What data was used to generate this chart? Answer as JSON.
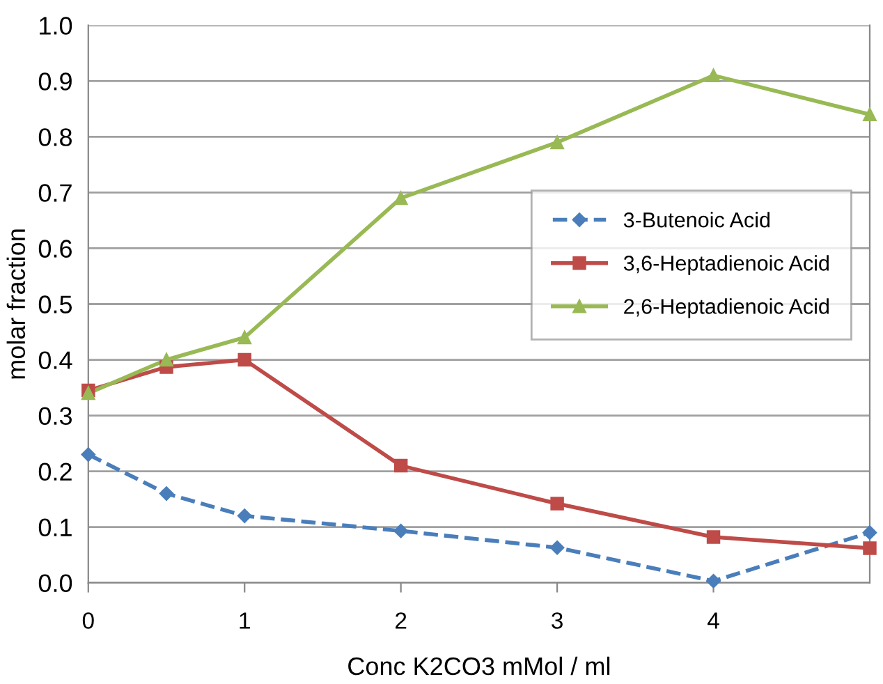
{
  "chart_data": {
    "type": "line",
    "xlabel": "Conc K2CO3 mMol / ml",
    "ylabel": "molar fraction",
    "x": [
      0,
      0.5,
      1,
      2,
      3,
      4,
      5
    ],
    "xlim": [
      0,
      5
    ],
    "xticks": [
      0,
      1,
      2,
      3,
      4
    ],
    "ylim": [
      0,
      1
    ],
    "yticks": [
      {
        "value": 0,
        "label": "0.0"
      },
      {
        "value": 0.1,
        "label": "0.1"
      },
      {
        "value": 0.2,
        "label": "0.2"
      },
      {
        "value": 0.3,
        "label": "0.3"
      },
      {
        "value": 0.4,
        "label": "0.4"
      },
      {
        "value": 0.5,
        "label": "0.5"
      },
      {
        "value": 0.6,
        "label": "0.6"
      },
      {
        "value": 0.7,
        "label": "0.7"
      },
      {
        "value": 0.8,
        "label": "0.8"
      },
      {
        "value": 0.9,
        "label": "0.9"
      },
      {
        "value": 1,
        "label": "1.0"
      }
    ],
    "grid": "y",
    "legend": "right",
    "series": [
      {
        "name": "3-Butenoic Acid",
        "color": "#4a7ebb",
        "marker": "diamond",
        "line_style": "dashed",
        "values": [
          0.23,
          0.16,
          0.12,
          0.093,
          0.063,
          0.003,
          0.09
        ]
      },
      {
        "name": "3,6-Heptadienoic Acid",
        "color": "#be4b48",
        "marker": "square",
        "line_style": "solid",
        "values": [
          0.345,
          0.387,
          0.4,
          0.21,
          0.142,
          0.082,
          0.062
        ]
      },
      {
        "name": "2,6-Heptadienoic Acid",
        "color": "#98b954",
        "marker": "triangle",
        "line_style": "solid",
        "values": [
          0.34,
          0.4,
          0.44,
          0.69,
          0.79,
          0.91,
          0.84
        ]
      }
    ]
  }
}
